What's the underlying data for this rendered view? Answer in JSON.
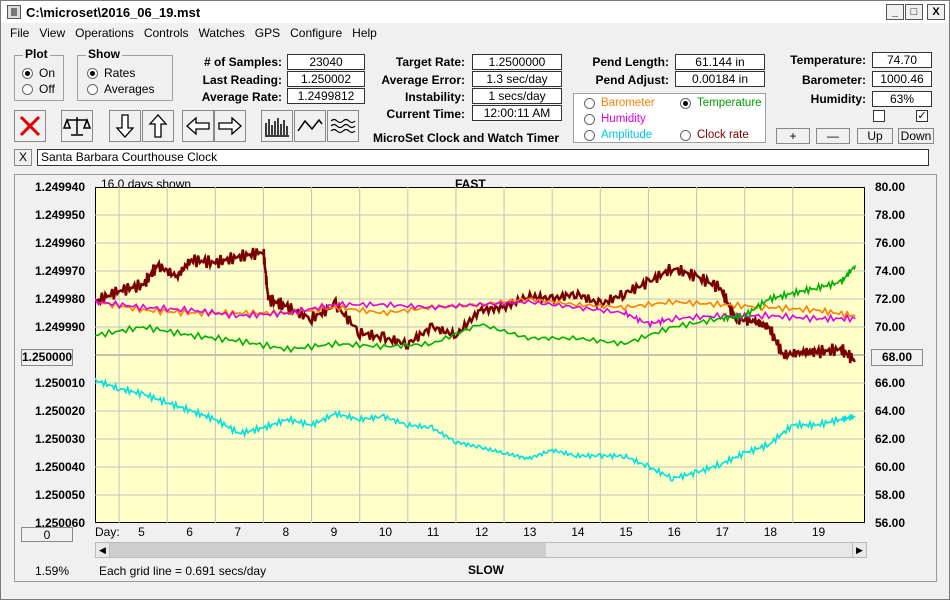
{
  "window": {
    "title": "C:\\microset\\2016_06_19.mst",
    "minimize": "_",
    "maximize": "□",
    "close": "X"
  },
  "menu": [
    "File",
    "View",
    "Operations",
    "Controls",
    "Watches",
    "GPS",
    "Configure",
    "Help"
  ],
  "plot_group": {
    "label": "Plot",
    "on": "On",
    "off": "Off"
  },
  "show_group": {
    "label": "Show",
    "rates": "Rates",
    "averages": "Averages"
  },
  "stats": {
    "samples_label": "# of Samples:",
    "samples": "23040",
    "last_label": "Last Reading:",
    "last": "1.250002",
    "avg_label": "Average Rate:",
    "avg": "1.2499812"
  },
  "targets": {
    "target_label": "Target Rate:",
    "target": "1.2500000",
    "error_label": "Average Error:",
    "error": "1.3 sec/day",
    "instab_label": "Instability:",
    "instab": "1 secs/day",
    "time_label": "Current Time:",
    "time": "12:00:11 AM"
  },
  "app_caption": "MicroSet Clock and Watch Timer",
  "pend": {
    "length_label": "Pend Length:",
    "length": "61.144 in",
    "adjust_label": "Pend Adjust:",
    "adjust": "0.00184 in"
  },
  "env": {
    "temp_label": "Temperature:",
    "temp": "74.70",
    "baro_label": "Barometer:",
    "baro": "1000.46",
    "hum_label": "Humidity:",
    "hum": "63%"
  },
  "options": {
    "barometer": "Barometer",
    "temperature": "Temperature",
    "humidity": "Humidity",
    "clockrate": "Clock rate",
    "amplitude": "Amplitude"
  },
  "env_buttons": {
    "plus": "+",
    "minus": "—",
    "up": "Up",
    "down": "Down"
  },
  "checkbox2": "✓",
  "clock_name": "Santa Barbara Courthouse Clock",
  "clear_btn": "X",
  "colors": {
    "rate": "#7a0000",
    "barometer": "#ff8000",
    "temperature": "#00b000",
    "humidity": "#e000e0",
    "amplitude": "#00e0e0",
    "plotbg": "#ffffc8",
    "grid": "#c0c0c0"
  },
  "chart_data": {
    "type": "line",
    "title": "FAST",
    "bottom_title": "SLOW",
    "subtitle": "16.0 days shown",
    "x_axis_label": "Day:",
    "x_ticks": [
      "5",
      "6",
      "7",
      "8",
      "9",
      "10",
      "11",
      "12",
      "13",
      "14",
      "15",
      "16",
      "17",
      "18",
      "19"
    ],
    "y_left_ticks": [
      "1.249940",
      "1.249950",
      "1.249960",
      "1.249970",
      "1.249980",
      "1.249990",
      "1.250000",
      "1.250010",
      "1.250020",
      "1.250030",
      "1.250040",
      "1.250050",
      "1.250060"
    ],
    "y_right_ticks": [
      "80.00",
      "78.00",
      "76.00",
      "74.00",
      "72.00",
      "70.00",
      "68.00",
      "66.00",
      "64.00",
      "62.00",
      "60.00",
      "58.00",
      "56.00"
    ],
    "y_left_center": "1.250000",
    "y_right_center": "68.00",
    "x_range": [
      4.0,
      20.0
    ],
    "series": [
      {
        "name": "Clock rate",
        "axis": "left",
        "points": [
          [
            4.0,
            1.249981
          ],
          [
            4.5,
            1.249977
          ],
          [
            5.0,
            1.249975
          ],
          [
            5.3,
            1.249968
          ],
          [
            5.7,
            1.249972
          ],
          [
            6.0,
            1.249966
          ],
          [
            6.5,
            1.249967
          ],
          [
            7.0,
            1.249965
          ],
          [
            7.5,
            1.249963
          ],
          [
            7.6,
            1.24998
          ],
          [
            8.0,
            1.249983
          ],
          [
            8.5,
            1.249987
          ],
          [
            9.0,
            1.249982
          ],
          [
            9.5,
            1.249992
          ],
          [
            10.0,
            1.249994
          ],
          [
            10.5,
            1.249996
          ],
          [
            11.0,
            1.24999
          ],
          [
            11.5,
            1.249993
          ],
          [
            12.0,
            1.249984
          ],
          [
            12.5,
            1.249983
          ],
          [
            13.0,
            1.249979
          ],
          [
            13.5,
            1.24998
          ],
          [
            14.0,
            1.249978
          ],
          [
            14.5,
            1.249982
          ],
          [
            15.0,
            1.249978
          ],
          [
            15.5,
            1.249974
          ],
          [
            16.0,
            1.249969
          ],
          [
            16.5,
            1.249972
          ],
          [
            17.0,
            1.249976
          ],
          [
            17.3,
            1.249987
          ],
          [
            17.7,
            1.249988
          ],
          [
            18.0,
            1.24999
          ],
          [
            18.3,
            1.25
          ],
          [
            18.7,
            1.249999
          ],
          [
            19.0,
            1.249999
          ],
          [
            19.5,
            1.249998
          ],
          [
            19.8,
            1.250002
          ]
        ]
      },
      {
        "name": "Barometer",
        "axis": "left",
        "points": [
          [
            4.0,
            1.249981
          ],
          [
            5.0,
            1.249984
          ],
          [
            6.0,
            1.249985
          ],
          [
            7.0,
            1.249985
          ],
          [
            8.0,
            1.249985
          ],
          [
            9.0,
            1.249983
          ],
          [
            10.0,
            1.249985
          ],
          [
            11.0,
            1.249983
          ],
          [
            12.0,
            1.249982
          ],
          [
            13.0,
            1.24998
          ],
          [
            14.0,
            1.249982
          ],
          [
            15.0,
            1.249983
          ],
          [
            16.0,
            1.249981
          ],
          [
            17.0,
            1.249982
          ],
          [
            18.0,
            1.249983
          ],
          [
            19.0,
            1.249984
          ],
          [
            19.8,
            1.249986
          ]
        ]
      },
      {
        "name": "Humidity",
        "axis": "left",
        "points": [
          [
            4.0,
            1.249981
          ],
          [
            5.0,
            1.249983
          ],
          [
            6.0,
            1.249984
          ],
          [
            7.0,
            1.249986
          ],
          [
            8.0,
            1.249985
          ],
          [
            9.0,
            1.249982
          ],
          [
            10.0,
            1.249982
          ],
          [
            11.0,
            1.249983
          ],
          [
            12.0,
            1.249982
          ],
          [
            13.0,
            1.249981
          ],
          [
            14.0,
            1.249983
          ],
          [
            15.0,
            1.249985
          ],
          [
            15.5,
            1.249989
          ],
          [
            16.0,
            1.249987
          ],
          [
            17.0,
            1.249986
          ],
          [
            18.0,
            1.249986
          ],
          [
            19.0,
            1.249987
          ],
          [
            19.8,
            1.249987
          ]
        ]
      },
      {
        "name": "Temperature",
        "axis": "left",
        "points": [
          [
            4.0,
            1.249993
          ],
          [
            5.0,
            1.24999
          ],
          [
            6.0,
            1.249993
          ],
          [
            7.0,
            1.249995
          ],
          [
            8.0,
            1.249998
          ],
          [
            9.0,
            1.249996
          ],
          [
            10.0,
            1.249997
          ],
          [
            11.0,
            1.249996
          ],
          [
            12.0,
            1.249989
          ],
          [
            13.0,
            1.249994
          ],
          [
            14.0,
            1.249994
          ],
          [
            15.0,
            1.249996
          ],
          [
            16.0,
            1.24999
          ],
          [
            17.0,
            1.249987
          ],
          [
            17.5,
            1.249986
          ],
          [
            18.0,
            1.24998
          ],
          [
            18.5,
            1.249978
          ],
          [
            19.0,
            1.249976
          ],
          [
            19.5,
            1.249974
          ],
          [
            19.8,
            1.249968
          ]
        ]
      },
      {
        "name": "Amplitude",
        "axis": "left",
        "points": [
          [
            4.0,
            1.250009
          ],
          [
            4.5,
            1.250012
          ],
          [
            5.0,
            1.250014
          ],
          [
            5.5,
            1.250017
          ],
          [
            6.0,
            1.25002
          ],
          [
            6.5,
            1.250023
          ],
          [
            7.0,
            1.250028
          ],
          [
            7.5,
            1.250026
          ],
          [
            8.0,
            1.250023
          ],
          [
            8.5,
            1.250025
          ],
          [
            9.0,
            1.250021
          ],
          [
            9.5,
            1.250023
          ],
          [
            10.0,
            1.250022
          ],
          [
            10.5,
            1.250025
          ],
          [
            11.0,
            1.250026
          ],
          [
            11.5,
            1.250031
          ],
          [
            12.0,
            1.250033
          ],
          [
            12.5,
            1.250035
          ],
          [
            13.0,
            1.250037
          ],
          [
            13.5,
            1.250034
          ],
          [
            14.0,
            1.250036
          ],
          [
            14.5,
            1.250036
          ],
          [
            15.0,
            1.250036
          ],
          [
            15.5,
            1.25004
          ],
          [
            16.0,
            1.250044
          ],
          [
            16.5,
            1.250042
          ],
          [
            17.0,
            1.250039
          ],
          [
            17.5,
            1.250035
          ],
          [
            18.0,
            1.250032
          ],
          [
            18.5,
            1.250025
          ],
          [
            19.0,
            1.250025
          ],
          [
            19.5,
            1.250023
          ],
          [
            19.8,
            1.250022
          ]
        ]
      }
    ]
  },
  "bottom": {
    "zero_btn": "0",
    "percent": "1.59%",
    "grid_note": "Each grid line = 0.691 secs/day"
  }
}
